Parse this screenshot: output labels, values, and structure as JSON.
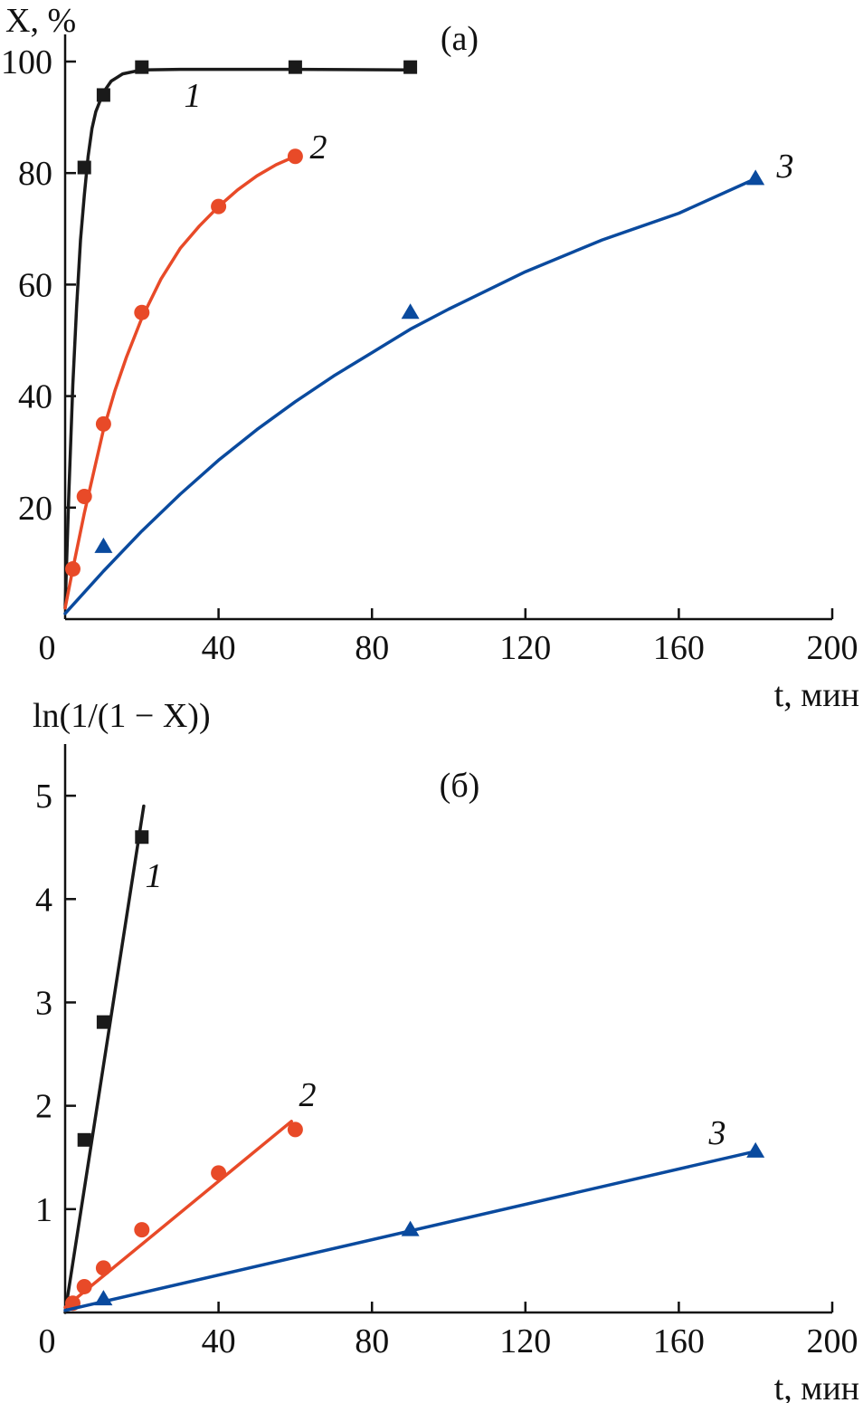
{
  "chart_data": [
    {
      "type": "scatter",
      "panel_label": "(a)",
      "ylabel": "X, %",
      "xlabel": "t, мин",
      "xlim": [
        0,
        200
      ],
      "ylim": [
        0,
        100
      ],
      "x_ticks": [
        0,
        40,
        80,
        120,
        160,
        200
      ],
      "y_ticks": [
        20,
        40,
        60,
        80,
        100
      ],
      "grid": false,
      "series": [
        {
          "name": "1",
          "color": "#1a1a1a",
          "marker": "square",
          "points": [
            [
              5,
              81
            ],
            [
              10,
              94
            ],
            [
              20,
              99
            ],
            [
              60,
              99
            ],
            [
              90,
              99
            ]
          ],
          "fit": [
            [
              0,
              2
            ],
            [
              1,
              23
            ],
            [
              2,
              42
            ],
            [
              3,
              56
            ],
            [
              4,
              68
            ],
            [
              5,
              76
            ],
            [
              6,
              83
            ],
            [
              7,
              88
            ],
            [
              8,
              91
            ],
            [
              10,
              94.5
            ],
            [
              12,
              96.5
            ],
            [
              15,
              97.8
            ],
            [
              20,
              98.5
            ],
            [
              30,
              98.6
            ],
            [
              60,
              98.6
            ],
            [
              90,
              98.5
            ]
          ]
        },
        {
          "name": "2",
          "color": "#e84a28",
          "marker": "circle",
          "points": [
            [
              2,
              9
            ],
            [
              5,
              22
            ],
            [
              10,
              35
            ],
            [
              20,
              55
            ],
            [
              40,
              74
            ],
            [
              60,
              83
            ]
          ],
          "fit": [
            [
              0,
              2
            ],
            [
              2,
              9
            ],
            [
              5,
              19
            ],
            [
              8,
              28
            ],
            [
              10,
              34
            ],
            [
              13,
              41
            ],
            [
              16,
              47
            ],
            [
              20,
              54
            ],
            [
              25,
              61
            ],
            [
              30,
              66.5
            ],
            [
              35,
              70.5
            ],
            [
              40,
              74
            ],
            [
              45,
              77
            ],
            [
              50,
              79.5
            ],
            [
              55,
              81.5
            ],
            [
              60,
              83
            ]
          ]
        },
        {
          "name": "3",
          "color": "#0a4a9e",
          "marker": "triangle",
          "points": [
            [
              10,
              13
            ],
            [
              90,
              55
            ],
            [
              180,
              79
            ]
          ],
          "fit": [
            [
              0,
              1
            ],
            [
              10,
              8.6
            ],
            [
              20,
              15.8
            ],
            [
              30,
              22.4
            ],
            [
              40,
              28.5
            ],
            [
              50,
              34
            ],
            [
              60,
              39
            ],
            [
              70,
              43.6
            ],
            [
              80,
              47.8
            ],
            [
              90,
              52
            ],
            [
              100,
              55.6
            ],
            [
              120,
              62.3
            ],
            [
              140,
              68
            ],
            [
              160,
              72.8
            ],
            [
              180,
              79
            ]
          ]
        }
      ]
    },
    {
      "type": "scatter",
      "panel_label": "(б)",
      "ylabel": "ln(1/(1 − X))",
      "xlabel": "t, мин",
      "xlim": [
        0,
        200
      ],
      "ylim": [
        0,
        5.5
      ],
      "x_ticks": [
        0,
        40,
        80,
        120,
        160,
        200
      ],
      "y_ticks": [
        1,
        2,
        3,
        4,
        5
      ],
      "grid": false,
      "series": [
        {
          "name": "1",
          "color": "#1a1a1a",
          "marker": "square",
          "points": [
            [
              5,
              1.67
            ],
            [
              10,
              2.81
            ],
            [
              20,
              4.6
            ]
          ],
          "fit": [
            [
              0,
              0
            ],
            [
              20.5,
              4.9
            ]
          ]
        },
        {
          "name": "2",
          "color": "#e84a28",
          "marker": "circle",
          "points": [
            [
              2,
              0.09
            ],
            [
              5,
              0.25
            ],
            [
              10,
              0.43
            ],
            [
              20,
              0.8
            ],
            [
              40,
              1.35
            ],
            [
              60,
              1.77
            ]
          ],
          "fit": [
            [
              0,
              0.05
            ],
            [
              59,
              1.85
            ]
          ]
        },
        {
          "name": "3",
          "color": "#0a4a9e",
          "marker": "triangle",
          "points": [
            [
              10,
              0.13
            ],
            [
              90,
              0.8
            ],
            [
              180,
              1.56
            ]
          ],
          "fit": [
            [
              0,
              0.02
            ],
            [
              180,
              1.56
            ]
          ]
        }
      ]
    }
  ]
}
